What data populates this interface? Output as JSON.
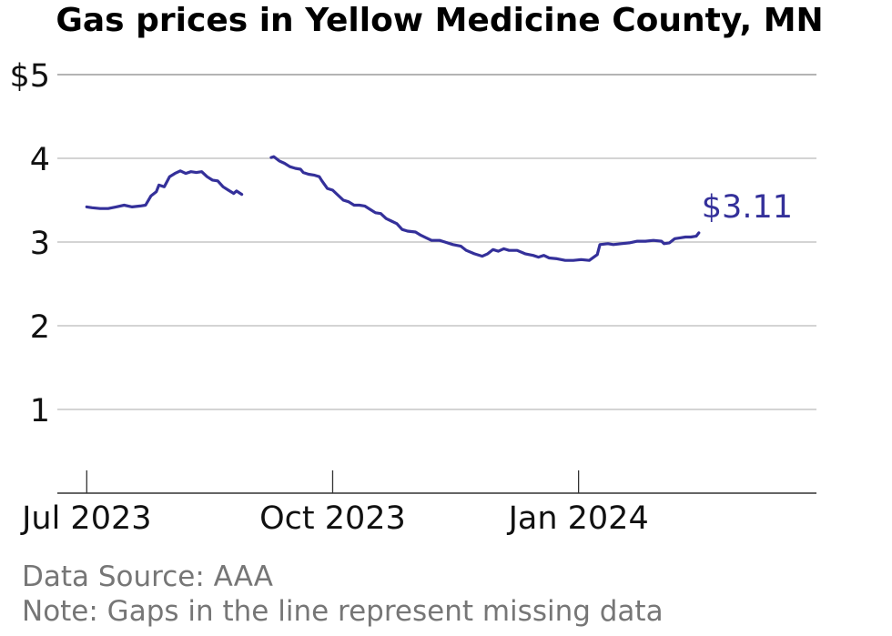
{
  "chart_data": {
    "type": "line",
    "title": "Gas prices in Yellow Medicine County, MN",
    "x_ticks": [
      {
        "date": "2023-07-01",
        "label": "Jul 2023"
      },
      {
        "date": "2023-10-01",
        "label": "Oct 2023"
      },
      {
        "date": "2024-01-01",
        "label": "Jan 2024"
      }
    ],
    "y_ticks": [
      {
        "value": 1,
        "label": "1"
      },
      {
        "value": 2,
        "label": "2"
      },
      {
        "value": 3,
        "label": "3"
      },
      {
        "value": 4,
        "label": "4"
      },
      {
        "value": 5,
        "label": "$5"
      }
    ],
    "ylim": [
      0,
      5
    ],
    "xlim": [
      "2023-06-20",
      "2024-03-30"
    ],
    "grid": true,
    "series": [
      {
        "color": "#34309a",
        "segments": [
          [
            [
              "2023-07-01",
              3.42
            ],
            [
              "2023-07-03",
              3.41
            ],
            [
              "2023-07-06",
              3.4
            ],
            [
              "2023-07-09",
              3.4
            ],
            [
              "2023-07-12",
              3.42
            ],
            [
              "2023-07-15",
              3.44
            ],
            [
              "2023-07-18",
              3.42
            ],
            [
              "2023-07-21",
              3.43
            ],
            [
              "2023-07-23",
              3.44
            ],
            [
              "2023-07-25",
              3.55
            ],
            [
              "2023-07-27",
              3.6
            ],
            [
              "2023-07-28",
              3.68
            ],
            [
              "2023-07-30",
              3.66
            ],
            [
              "2023-08-01",
              3.78
            ],
            [
              "2023-08-03",
              3.82
            ],
            [
              "2023-08-05",
              3.85
            ],
            [
              "2023-08-07",
              3.82
            ],
            [
              "2023-08-09",
              3.84
            ],
            [
              "2023-08-11",
              3.83
            ],
            [
              "2023-08-13",
              3.84
            ],
            [
              "2023-08-15",
              3.78
            ],
            [
              "2023-08-17",
              3.74
            ],
            [
              "2023-08-19",
              3.73
            ],
            [
              "2023-08-21",
              3.66
            ],
            [
              "2023-08-23",
              3.62
            ],
            [
              "2023-08-25",
              3.58
            ],
            [
              "2023-08-26",
              3.61
            ],
            [
              "2023-08-28",
              3.57
            ]
          ],
          [
            [
              "2023-09-08",
              4.01
            ],
            [
              "2023-09-09",
              4.02
            ],
            [
              "2023-09-11",
              3.97
            ],
            [
              "2023-09-13",
              3.94
            ],
            [
              "2023-09-15",
              3.9
            ],
            [
              "2023-09-17",
              3.88
            ],
            [
              "2023-09-19",
              3.87
            ],
            [
              "2023-09-20",
              3.83
            ],
            [
              "2023-09-22",
              3.81
            ],
            [
              "2023-09-24",
              3.8
            ],
            [
              "2023-09-26",
              3.78
            ],
            [
              "2023-09-27",
              3.73
            ],
            [
              "2023-09-29",
              3.64
            ],
            [
              "2023-10-01",
              3.62
            ],
            [
              "2023-10-03",
              3.56
            ],
            [
              "2023-10-05",
              3.5
            ],
            [
              "2023-10-07",
              3.48
            ],
            [
              "2023-10-09",
              3.44
            ],
            [
              "2023-10-11",
              3.44
            ],
            [
              "2023-10-13",
              3.43
            ],
            [
              "2023-10-15",
              3.39
            ],
            [
              "2023-10-17",
              3.35
            ],
            [
              "2023-10-19",
              3.34
            ],
            [
              "2023-10-21",
              3.28
            ],
            [
              "2023-10-23",
              3.25
            ],
            [
              "2023-10-25",
              3.22
            ],
            [
              "2023-10-27",
              3.15
            ],
            [
              "2023-10-29",
              3.13
            ],
            [
              "2023-11-01",
              3.12
            ],
            [
              "2023-11-03",
              3.08
            ],
            [
              "2023-11-05",
              3.05
            ],
            [
              "2023-11-07",
              3.02
            ],
            [
              "2023-11-10",
              3.02
            ],
            [
              "2023-11-12",
              3.0
            ],
            [
              "2023-11-15",
              2.97
            ],
            [
              "2023-11-18",
              2.95
            ],
            [
              "2023-11-20",
              2.9
            ],
            [
              "2023-11-23",
              2.86
            ],
            [
              "2023-11-26",
              2.83
            ],
            [
              "2023-11-28",
              2.86
            ],
            [
              "2023-11-30",
              2.91
            ],
            [
              "2023-12-02",
              2.89
            ],
            [
              "2023-12-04",
              2.92
            ],
            [
              "2023-12-06",
              2.9
            ],
            [
              "2023-12-09",
              2.9
            ],
            [
              "2023-12-12",
              2.86
            ],
            [
              "2023-12-15",
              2.84
            ],
            [
              "2023-12-17",
              2.82
            ],
            [
              "2023-12-19",
              2.84
            ],
            [
              "2023-12-21",
              2.81
            ],
            [
              "2023-12-24",
              2.8
            ],
            [
              "2023-12-27",
              2.78
            ],
            [
              "2023-12-30",
              2.78
            ],
            [
              "2024-01-02",
              2.79
            ],
            [
              "2024-01-05",
              2.78
            ],
            [
              "2024-01-08",
              2.85
            ],
            [
              "2024-01-09",
              2.97
            ],
            [
              "2024-01-12",
              2.98
            ],
            [
              "2024-01-14",
              2.97
            ],
            [
              "2024-01-17",
              2.98
            ],
            [
              "2024-01-20",
              2.99
            ],
            [
              "2024-01-23",
              3.01
            ],
            [
              "2024-01-26",
              3.01
            ],
            [
              "2024-01-29",
              3.02
            ],
            [
              "2024-02-01",
              3.01
            ],
            [
              "2024-02-02",
              2.98
            ],
            [
              "2024-02-04",
              2.99
            ],
            [
              "2024-02-06",
              3.04
            ],
            [
              "2024-02-08",
              3.05
            ],
            [
              "2024-02-10",
              3.06
            ],
            [
              "2024-02-12",
              3.06
            ],
            [
              "2024-02-14",
              3.07
            ],
            [
              "2024-02-15",
              3.11
            ]
          ]
        ],
        "end_label": "$3.11"
      }
    ]
  },
  "footer": {
    "source": "Data Source: AAA",
    "note": "Note: Gaps in the line represent missing data"
  }
}
